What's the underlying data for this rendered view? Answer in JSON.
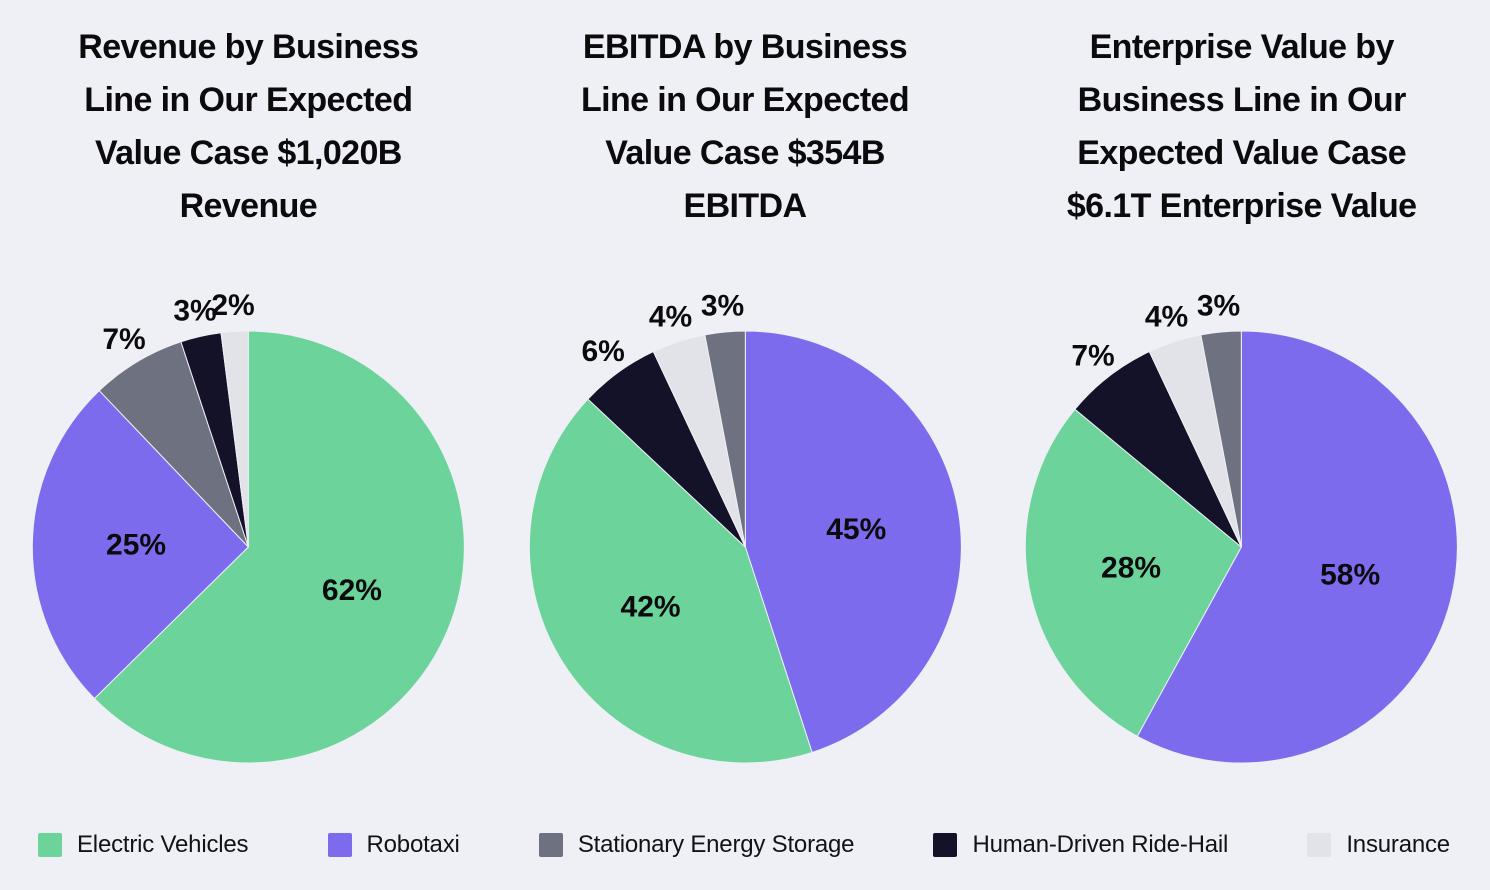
{
  "page": {
    "background_color": "#eff0f5",
    "text_color": "#0b0b0e"
  },
  "legend": {
    "items": [
      {
        "label": "Electric Vehicles",
        "color": "#6cd39a"
      },
      {
        "label": "Robotaxi",
        "color": "#7c6bed"
      },
      {
        "label": "Stationary Energy Storage",
        "color": "#6e7180"
      },
      {
        "label": "Human-Driven Ride-Hail",
        "color": "#131229"
      },
      {
        "label": "Insurance",
        "color": "#e2e3e8"
      }
    ]
  },
  "chart_data": [
    {
      "type": "pie",
      "title": "Revenue by Business Line in Our Expected Value Case $1,020B Revenue",
      "title_lines": [
        "Revenue by Business",
        "Line in Our Expected",
        "Value Case $1,020B",
        "Revenue"
      ],
      "total_label": "$1,020B Revenue",
      "direction": "clockwise",
      "start_angle_deg": 0,
      "slices": [
        {
          "label": "Electric Vehicles",
          "value": 62,
          "text": "62%",
          "label_placement": "inside"
        },
        {
          "label": "Robotaxi",
          "value": 25,
          "text": "25%",
          "label_placement": "inside"
        },
        {
          "label": "Stationary Energy Storage",
          "value": 7,
          "text": "7%",
          "label_placement": "outside"
        },
        {
          "label": "Human-Driven Ride-Hail",
          "value": 3,
          "text": "3%",
          "label_placement": "outside"
        },
        {
          "label": "Insurance",
          "value": 2,
          "text": "2%",
          "label_placement": "outside"
        }
      ]
    },
    {
      "type": "pie",
      "title": "EBITDA by Business Line in Our Expected Value Case $354B EBITDA",
      "title_lines": [
        "EBITDA by Business",
        "Line in Our Expected",
        "Value Case $354B",
        "EBITDA"
      ],
      "total_label": "$354B EBITDA",
      "direction": "clockwise",
      "start_angle_deg": 0,
      "slices": [
        {
          "label": "Robotaxi",
          "value": 45,
          "text": "45%",
          "label_placement": "inside"
        },
        {
          "label": "Electric Vehicles",
          "value": 42,
          "text": "42%",
          "label_placement": "inside"
        },
        {
          "label": "Human-Driven Ride-Hail",
          "value": 6,
          "text": "6%",
          "label_placement": "outside"
        },
        {
          "label": "Insurance",
          "value": 4,
          "text": "4%",
          "label_placement": "outside"
        },
        {
          "label": "Stationary Energy Storage",
          "value": 3,
          "text": "3%",
          "label_placement": "outside"
        }
      ]
    },
    {
      "type": "pie",
      "title": "Enterprise Value by Business Line in Our Expected Value Case $6.1T Enterprise Value",
      "title_lines": [
        "Enterprise Value by",
        "Business Line in Our",
        "Expected Value Case",
        "$6.1T Enterprise Value"
      ],
      "total_label": "$6.1T Enterprise Value",
      "direction": "clockwise",
      "start_angle_deg": 0,
      "slices": [
        {
          "label": "Robotaxi",
          "value": 58,
          "text": "58%",
          "label_placement": "inside"
        },
        {
          "label": "Electric Vehicles",
          "value": 28,
          "text": "28%",
          "label_placement": "inside"
        },
        {
          "label": "Human-Driven Ride-Hail",
          "value": 7,
          "text": "7%",
          "label_placement": "outside"
        },
        {
          "label": "Insurance",
          "value": 4,
          "text": "4%",
          "label_placement": "outside"
        },
        {
          "label": "Stationary Energy Storage",
          "value": 3,
          "text": "3%",
          "label_placement": "outside"
        }
      ]
    }
  ]
}
